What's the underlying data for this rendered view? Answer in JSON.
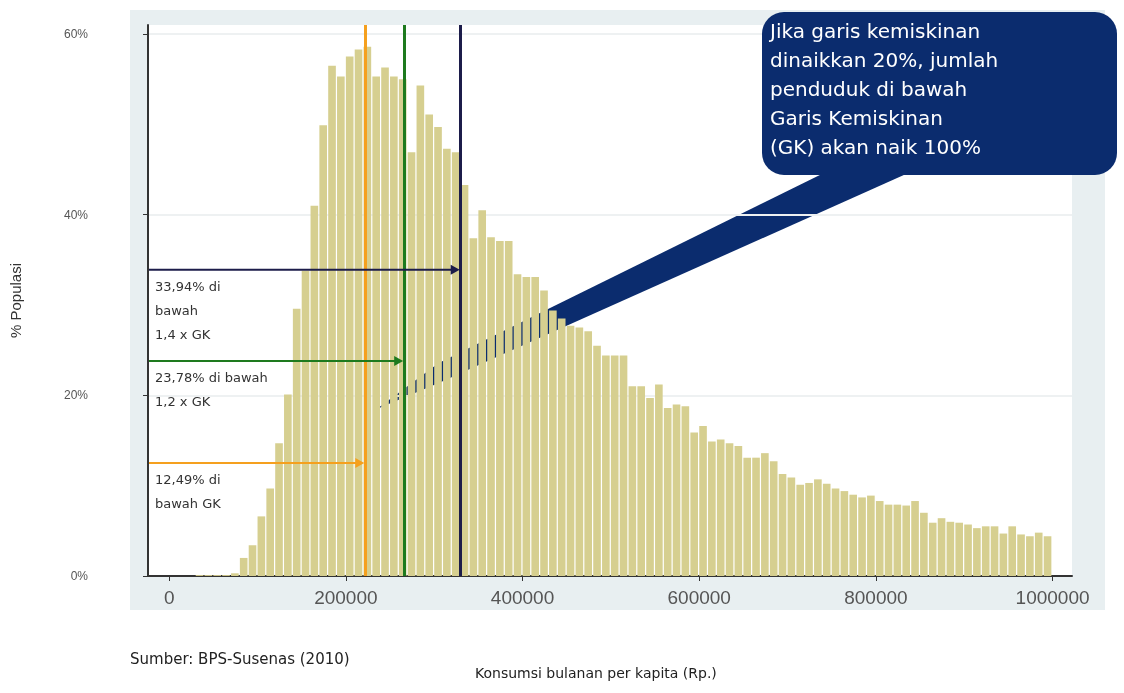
{
  "chart_data": {
    "type": "histogram",
    "xlabel": "Konsumsi bulanan per kapita (Rp.)",
    "ylabel": "% Populasi",
    "bins": [
      0,
      10000,
      20000,
      30000,
      40000,
      50000,
      60000,
      70000,
      80000,
      90000,
      100000,
      110000,
      120000,
      130000,
      140000,
      150000,
      160000,
      170000,
      180000,
      190000,
      200000,
      210000,
      220000,
      230000,
      240000,
      250000,
      260000,
      270000,
      280000,
      290000,
      300000,
      310000,
      320000,
      330000,
      340000,
      350000,
      360000,
      370000,
      380000,
      390000,
      400000,
      410000,
      420000,
      430000,
      440000,
      450000,
      460000,
      470000,
      480000,
      490000,
      500000,
      510000,
      520000,
      530000,
      540000,
      550000,
      560000,
      570000,
      580000,
      590000,
      600000,
      610000,
      620000,
      630000,
      640000,
      650000,
      660000,
      670000,
      680000,
      690000,
      700000,
      710000,
      720000,
      730000,
      740000,
      750000,
      760000,
      770000,
      780000,
      790000,
      800000,
      810000,
      820000,
      830000,
      840000,
      850000,
      860000,
      870000,
      880000,
      890000,
      900000,
      910000,
      920000,
      930000,
      940000,
      950000,
      960000,
      970000,
      980000,
      990000,
      1000000
    ],
    "values": [
      0,
      0,
      0,
      0.1,
      0.1,
      0.1,
      0.1,
      0.3,
      2.0,
      3.4,
      6.6,
      9.7,
      14.7,
      20.1,
      29.6,
      33.8,
      41.0,
      49.9,
      56.5,
      55.3,
      57.5,
      58.3,
      58.6,
      55.3,
      56.3,
      55.3,
      55.0,
      46.9,
      54.3,
      51.1,
      49.7,
      47.3,
      46.9,
      43.3,
      37.4,
      40.5,
      37.5,
      37.1,
      37.1,
      33.4,
      33.1,
      33.1,
      31.6,
      29.4,
      28.5,
      27.7,
      27.5,
      27.1,
      25.5,
      24.4,
      24.4,
      24.4,
      21.0,
      21.0,
      19.7,
      21.2,
      18.6,
      19.0,
      18.8,
      15.9,
      16.6,
      14.9,
      15.1,
      14.7,
      14.4,
      13.1,
      13.1,
      13.6,
      12.7,
      11.3,
      10.9,
      10.1,
      10.3,
      10.7,
      10.2,
      9.7,
      9.4,
      9.0,
      8.7,
      8.9,
      8.3,
      7.9,
      7.9,
      7.8,
      8.3,
      7.0,
      5.9,
      6.4,
      6.0,
      5.9,
      5.7,
      5.3,
      5.5,
      5.5,
      4.7,
      5.5,
      4.6,
      4.4,
      4.8,
      4.4
    ],
    "color": "#d6cf90",
    "xlim": [
      -24000,
      1022000
    ],
    "xticks": [
      0,
      200000,
      400000,
      600000,
      800000,
      1000000
    ],
    "ylim": [
      0,
      61
    ],
    "yticks": [
      {
        "value": 0,
        "label": "0%"
      },
      {
        "value": 20,
        "label": "20%"
      },
      {
        "value": 40,
        "label": "40%"
      },
      {
        "value": 60,
        "label": "60%"
      }
    ],
    "grid": "y",
    "ref_lines": [
      {
        "axis": "x",
        "value": 222000,
        "color": "#f5a01e"
      },
      {
        "axis": "x",
        "value": 266000,
        "color": "#1e7a1e"
      },
      {
        "axis": "x",
        "value": 330000,
        "color": "#1c1c4a"
      }
    ],
    "annotations": [
      {
        "text": "12,49% di\nbawah GK",
        "x": 222000,
        "y": 12.5
      },
      {
        "text": "23,78% di bawah\n1,2 x GK",
        "x": 266000,
        "y": 23.8
      },
      {
        "text": "33,94% di\nbawah\n1,4 x GK",
        "x": 330000,
        "y": 33.9
      },
      "Jika garis kemiskinan\ndinaikkan 20%, jumlah\npenduduk di bawah\nGaris Kemiskinan\n(GK) akan naik 100%",
      "Sumber: BPS-Susenas (2010)"
    ]
  }
}
